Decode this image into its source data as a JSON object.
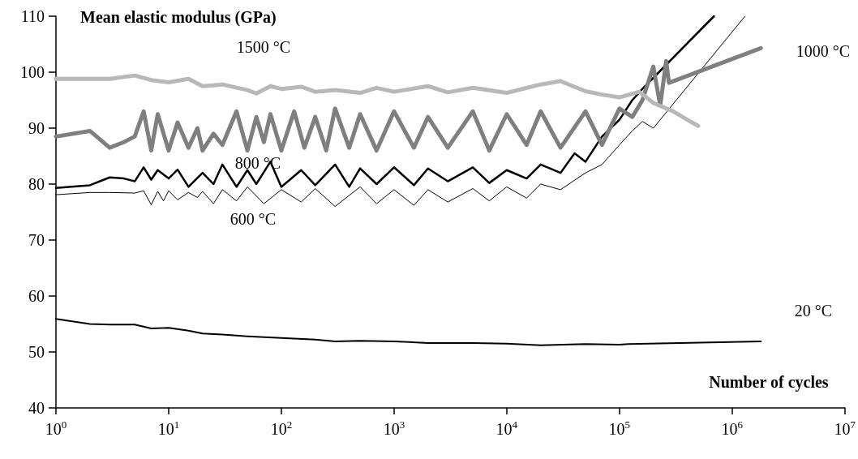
{
  "chart_data": {
    "type": "line",
    "xlabel": "Number of cycles",
    "ylabel": "Mean elastic modulus (GPa)",
    "log": "x",
    "xlim": [
      1,
      10000000
    ],
    "xticks": [
      {
        "value": 1,
        "label": "10$^{0}$"
      },
      {
        "value": 10,
        "label": "10$^{1}$"
      },
      {
        "value": 100,
        "label": "10$^{2}$"
      },
      {
        "value": 1000,
        "label": "10$^{3}$"
      },
      {
        "value": 10000,
        "label": "10$^{4}$"
      },
      {
        "value": 100000,
        "label": "10$^{5}$"
      },
      {
        "value": 1000000,
        "label": "10$^{6}$"
      },
      {
        "value": 10000000,
        "label": "10$^{7}$"
      }
    ],
    "ylim": [
      40,
      110
    ],
    "yticks": [
      40,
      50,
      60,
      70,
      80,
      90,
      100,
      110
    ],
    "grid": false,
    "marker": "none",
    "line_style": "solid",
    "series": [
      {
        "name": "1500 °C",
        "color": "#b8b8b8",
        "x": [
          1,
          3,
          5,
          7,
          10,
          15,
          20,
          30,
          50,
          60,
          80,
          100,
          150,
          200,
          300,
          500,
          700,
          1000,
          2000,
          3000,
          5000,
          10000,
          20000,
          30000,
          50000,
          70000,
          100000,
          150000,
          200000,
          300000,
          400000,
          500000
        ],
        "values": [
          98.8,
          98.8,
          99.4,
          98.6,
          98.2,
          98.8,
          97.5,
          97.8,
          96.8,
          96.2,
          97.5,
          97,
          97.4,
          96.5,
          96.8,
          96.3,
          97.2,
          96.5,
          97.5,
          96.4,
          97.2,
          96.3,
          97.8,
          98.4,
          96.6,
          96,
          95.5,
          96.5,
          94.5,
          93,
          91.5,
          90.4
        ]
      },
      {
        "name": "1000 °C",
        "color": "#7f7f7f",
        "x": [
          1,
          2,
          3,
          4,
          5,
          6,
          7,
          8,
          10,
          12,
          15,
          18,
          20,
          25,
          30,
          40,
          50,
          60,
          70,
          80,
          100,
          130,
          160,
          200,
          250,
          300,
          400,
          500,
          700,
          1000,
          1500,
          2000,
          3000,
          5000,
          7000,
          10000,
          15000,
          20000,
          30000,
          50000,
          70000,
          100000,
          130000,
          160000,
          200000,
          230000,
          260000,
          275000,
          1800000
        ],
        "values": [
          88.5,
          89.5,
          86.5,
          87.5,
          88.5,
          93,
          86,
          92.5,
          86,
          91,
          86.5,
          90,
          86,
          89,
          87,
          93,
          86,
          92,
          87.5,
          92.5,
          86,
          93,
          86.5,
          92,
          86,
          93.5,
          86.5,
          92.5,
          86,
          93,
          86.5,
          92,
          86.5,
          93,
          86,
          92.5,
          87,
          93,
          86.5,
          93,
          87,
          93.5,
          92,
          95,
          101,
          94,
          102,
          98.1,
          104.3
        ]
      },
      {
        "name": "800 °C",
        "color": "#000000",
        "x": [
          1,
          2,
          3,
          4,
          5,
          6,
          7,
          8,
          10,
          12,
          15,
          20,
          25,
          30,
          40,
          50,
          60,
          80,
          100,
          150,
          200,
          300,
          400,
          500,
          700,
          1000,
          1500,
          2000,
          3000,
          5000,
          7000,
          10000,
          15000,
          20000,
          30000,
          40000,
          50000,
          70000,
          100000,
          130000,
          160000,
          690000
        ],
        "values": [
          79.3,
          79.8,
          81.2,
          81,
          80.5,
          83,
          80.8,
          82.5,
          81,
          82.6,
          79.5,
          82,
          80,
          83.5,
          79.5,
          82.5,
          80,
          84,
          79.5,
          82.5,
          79.8,
          83.5,
          79.5,
          82.8,
          80,
          83,
          79.8,
          82.8,
          80.5,
          83,
          80.2,
          82.5,
          81,
          83.5,
          82,
          85.5,
          84,
          88.5,
          91.5,
          95,
          97,
          110
        ]
      },
      {
        "name": "600 °C",
        "color": "#000000",
        "x": [
          1,
          2,
          3,
          5,
          6,
          7,
          8,
          9,
          10,
          12,
          15,
          18,
          20,
          25,
          30,
          40,
          50,
          70,
          100,
          150,
          200,
          300,
          500,
          700,
          1000,
          1500,
          2000,
          3000,
          5000,
          7000,
          10000,
          15000,
          20000,
          30000,
          50000,
          70000,
          100000,
          130000,
          160000,
          200000,
          1300000
        ],
        "values": [
          78.1,
          78.5,
          78.5,
          78.4,
          78.8,
          76.3,
          78.7,
          77,
          78.8,
          77.2,
          78.5,
          77.6,
          78.7,
          76.5,
          79,
          77,
          79.5,
          76.5,
          79,
          76.8,
          79.2,
          76,
          79.5,
          76.5,
          79,
          76.2,
          79,
          76.8,
          79.2,
          77,
          79.5,
          77.5,
          80,
          79,
          82,
          83.5,
          87,
          89.5,
          91.2,
          90,
          110
        ]
      },
      {
        "name": "20 °C",
        "color": "#000000",
        "x": [
          1,
          2,
          3,
          5,
          7,
          10,
          15,
          20,
          30,
          50,
          100,
          200,
          300,
          500,
          1000,
          2000,
          5000,
          10000,
          20000,
          50000,
          100000,
          120000,
          1800000
        ],
        "values": [
          55.9,
          55,
          54.9,
          54.9,
          54.2,
          54.3,
          53.8,
          53.3,
          53.1,
          52.8,
          52.5,
          52.2,
          51.9,
          52,
          51.9,
          51.6,
          51.6,
          51.5,
          51.2,
          51.4,
          51.3,
          51.4,
          51.9
        ]
      }
    ]
  }
}
